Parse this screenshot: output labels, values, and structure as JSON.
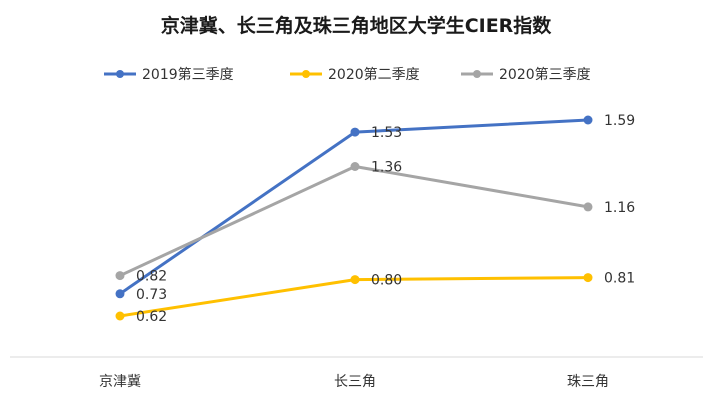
{
  "chart_data": {
    "type": "line",
    "title": "京津冀、长三角及珠三角地区大学生CIER指数",
    "xlabel": "",
    "ylabel": "",
    "categories": [
      "京津冀",
      "长三角",
      "珠三角"
    ],
    "ylim": [
      0.4,
      1.8
    ],
    "grid": false,
    "legend_position": "top",
    "series": [
      {
        "name": "2019第三季度",
        "values": [
          0.73,
          1.53,
          1.59
        ],
        "labels": [
          "0.73",
          "1.53",
          "1.59"
        ],
        "color": "#4472c4"
      },
      {
        "name": "2020第二季度",
        "values": [
          0.62,
          0.8,
          0.81
        ],
        "labels": [
          "0.62",
          "0.80",
          "0.81"
        ],
        "color": "#ffc000"
      },
      {
        "name": "2020第三季度",
        "values": [
          0.82,
          1.36,
          1.16
        ],
        "labels": [
          "0.82",
          "1.36",
          "1.16"
        ],
        "color": "#a5a5a5"
      }
    ]
  }
}
